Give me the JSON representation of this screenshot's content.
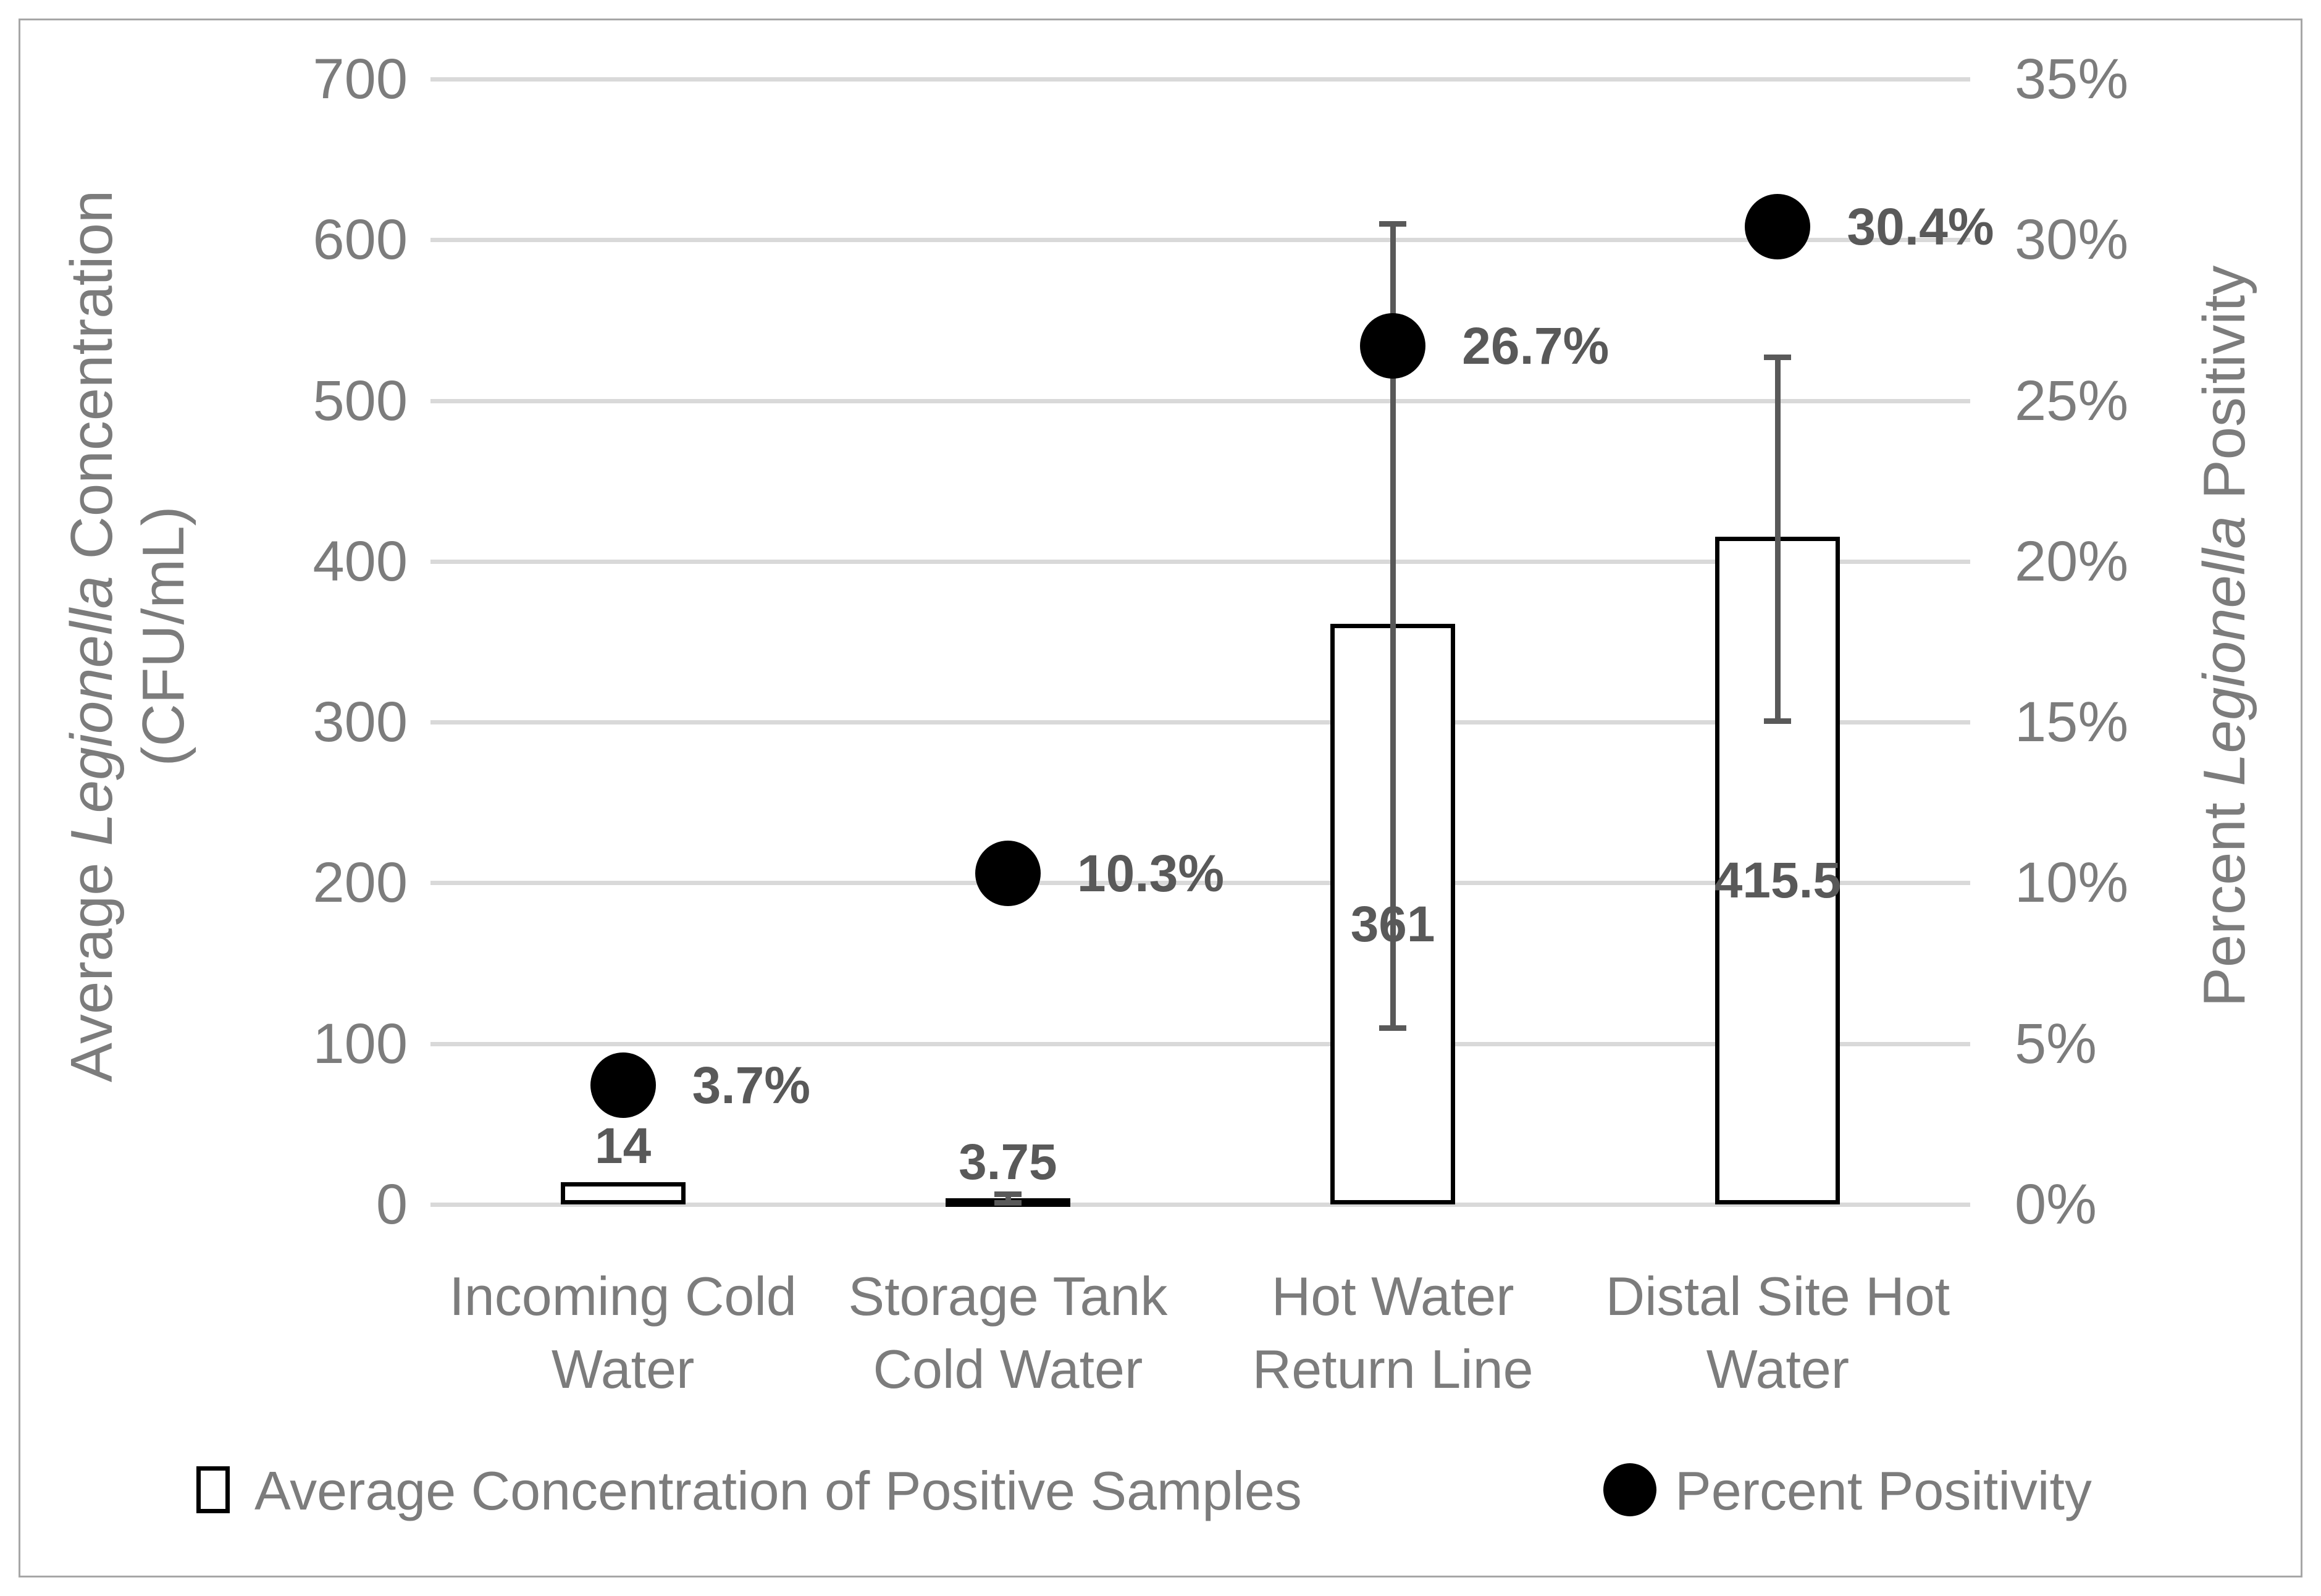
{
  "figure": {
    "description": "Dual-axis chart: average Legionella concentration (columns, left axis) and percent Legionella positivity (black dots, right axis) at four water sampling locations"
  },
  "colors": {
    "gridline": "#d9d9d9",
    "axis_text": "#7c7c7c",
    "data_label": "#595959",
    "marker": "#000000",
    "bar_fill": "#ffffff",
    "bar_border": "#000000",
    "error_bar": "#595959",
    "frame_border": "#a6a6a6"
  },
  "chart_data": {
    "type": "bar",
    "subtype": "dual-axis column + scatter",
    "grid": true,
    "legend_position": "bottom",
    "categories": [
      "Incoming Cold Water",
      "Storage Tank Cold Water",
      "Hot Water Return Line",
      "Distal Site Hot Water"
    ],
    "categories_lines": [
      [
        "Incoming Cold",
        "Water"
      ],
      [
        "Storage Tank",
        "Cold Water"
      ],
      [
        "Hot Water",
        "Return Line"
      ],
      [
        "Distal Site Hot",
        "Water"
      ]
    ],
    "series": [
      {
        "name": "Average Concentration of Positive Samples",
        "type": "bar",
        "axis": "left",
        "values": [
          14,
          3.75,
          361,
          415.5
        ],
        "labels": [
          "14",
          "3.75",
          "361",
          "415.5"
        ],
        "error_bars": [
          null,
          {
            "low": 1,
            "high": 6.5
          },
          {
            "low": 110,
            "high": 610
          },
          {
            "low": 301,
            "high": 527
          }
        ]
      },
      {
        "name": "Percent Positivity",
        "type": "scatter",
        "axis": "right",
        "values": [
          3.7,
          10.3,
          26.7,
          30.4
        ],
        "labels": [
          "3.7%",
          "10.3%",
          "26.7%",
          "30.4%"
        ]
      }
    ],
    "left_axis": {
      "title": "Average Legionella Concentration (CFU/mL)",
      "title_line1_parts": [
        "Average ",
        "Legionella",
        " Concentration"
      ],
      "title_line2": "(CFU/mL)",
      "ticks": [
        "700",
        "600",
        "500",
        "400",
        "300",
        "200",
        "100",
        "0"
      ],
      "range": [
        0,
        700
      ],
      "tick_step": 100
    },
    "right_axis": {
      "title": "Percent Legionella Positivity",
      "title_parts": [
        "Percent ",
        "Legionella",
        " Positivity"
      ],
      "ticks": [
        "35%",
        "30%",
        "25%",
        "20%",
        "15%",
        "10%",
        "5%",
        "0%"
      ],
      "range": [
        0,
        35
      ],
      "tick_step": 5
    }
  }
}
